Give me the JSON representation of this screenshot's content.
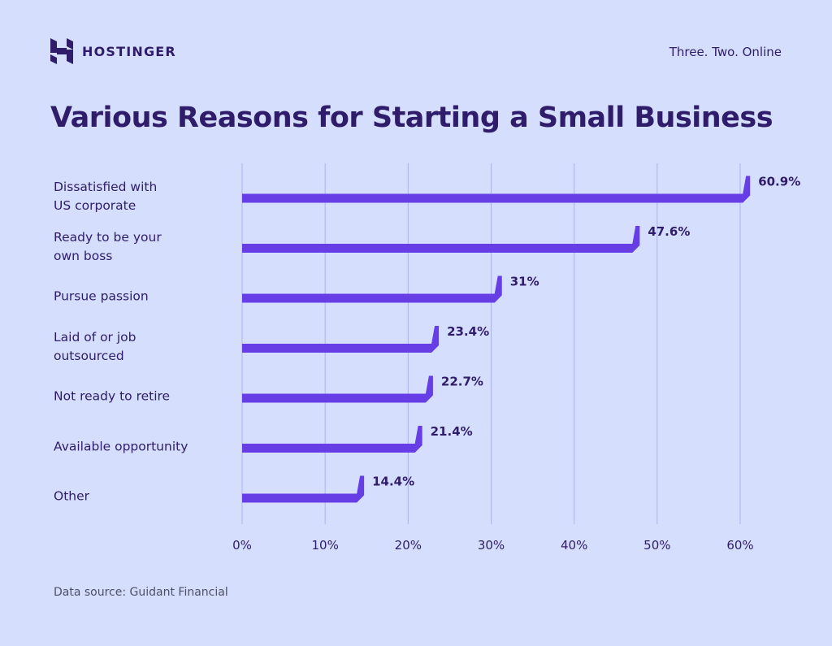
{
  "brand": {
    "name": "HOSTINGER",
    "logo_icon": "hostinger-h-icon",
    "tagline": "Three. Two. Online"
  },
  "colors": {
    "background": "#d5defc",
    "bar": "#673de6",
    "text": "#2f1c6a",
    "grid": "#aab3f0"
  },
  "footer": {
    "source": "Data source: Guidant Financial"
  },
  "chart_data": {
    "type": "bar",
    "orientation": "horizontal",
    "title": "Various Reasons for Starting a Small Business",
    "categories": [
      "Dissatisfied with US corporate",
      "Ready to be your own boss",
      "Pursue passion",
      "Laid of or job outsourced",
      "Not ready to retire",
      "Available opportunity",
      "Other"
    ],
    "category_lines": [
      [
        "Dissatisfied with",
        "US corporate"
      ],
      [
        "Ready to be your",
        "own boss"
      ],
      [
        "Pursue passion"
      ],
      [
        "Laid of or job",
        "outsourced"
      ],
      [
        "Not ready to retire"
      ],
      [
        "Available opportunity"
      ],
      [
        "Other"
      ]
    ],
    "values": [
      60.9,
      47.6,
      31,
      23.4,
      22.7,
      21.4,
      14.4
    ],
    "value_labels": [
      "60.9%",
      "47.6%",
      "31%",
      "23.4%",
      "22.7%",
      "21.4%",
      "14.4%"
    ],
    "xlim": [
      0,
      60
    ],
    "xticks": [
      0,
      10,
      20,
      30,
      40,
      50,
      60
    ],
    "xtick_labels": [
      "0%",
      "10%",
      "20%",
      "30%",
      "40%",
      "50%",
      "60%"
    ],
    "xlabel": "",
    "ylabel": "",
    "grid": true,
    "legend": "none"
  }
}
